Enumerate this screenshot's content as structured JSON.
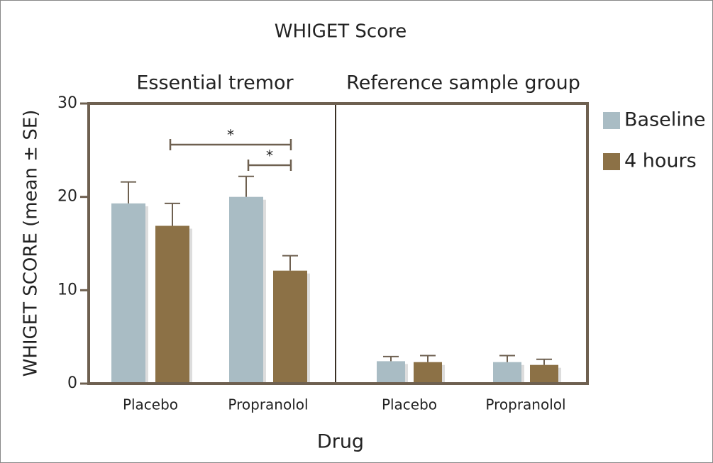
{
  "chart_data": {
    "type": "bar",
    "title": "WHIGET Score",
    "panels": [
      "Essential tremor",
      "Reference sample group"
    ],
    "categories": [
      "Placebo",
      "Propranolol",
      "Placebo",
      "Propranolol"
    ],
    "series": [
      {
        "name": "Baseline",
        "color": "#a9bcc4",
        "values": [
          19.3,
          20.0,
          2.4,
          2.3
        ],
        "errors": [
          2.3,
          2.2,
          0.5,
          0.7
        ]
      },
      {
        "name": "4 hours",
        "color": "#8c7146",
        "values": [
          16.9,
          12.1,
          2.3,
          2.0
        ],
        "errors": [
          2.4,
          1.6,
          0.7,
          0.6
        ]
      }
    ],
    "annotations": [
      "*",
      "*"
    ],
    "x_label": "Drug",
    "y_label": "WHIGET SCORE (mean ± SE)",
    "ylim": [
      0,
      30
    ],
    "yticks": [
      0,
      10,
      20,
      30
    ],
    "legend": "right"
  }
}
